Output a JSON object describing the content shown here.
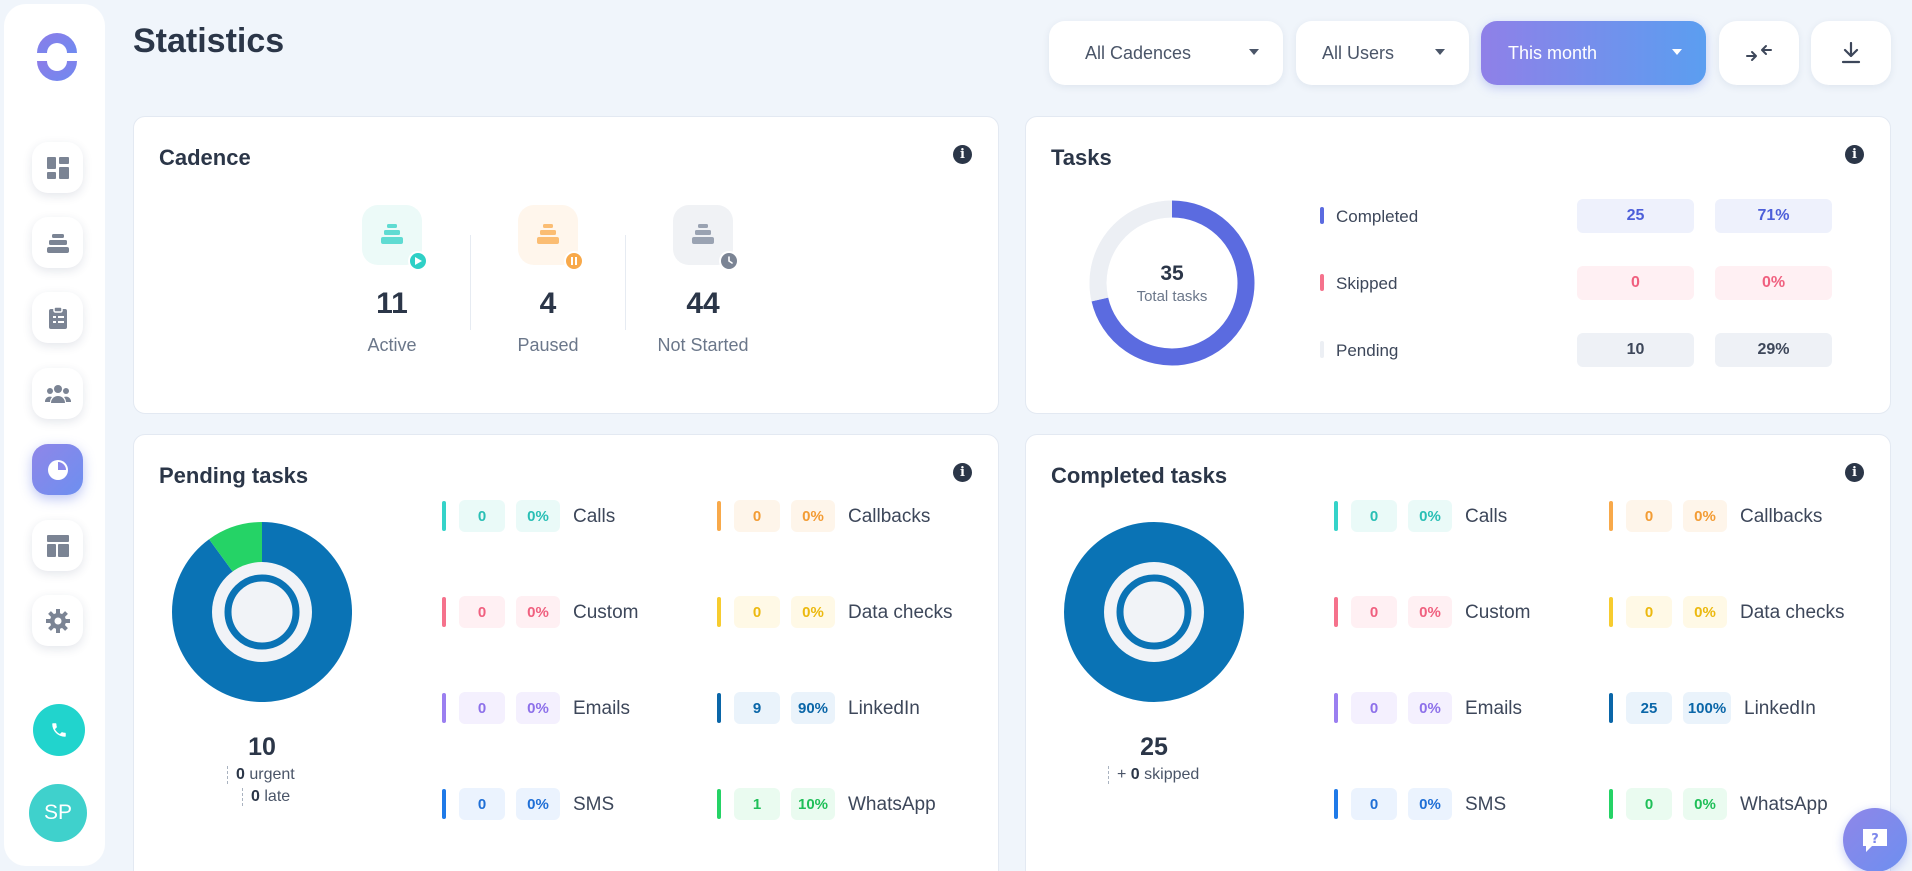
{
  "header": {
    "title": "Statistics",
    "filters": [
      "All Cadences",
      "All Users",
      "This month"
    ]
  },
  "user": {
    "initials": "SP"
  },
  "cadence": {
    "title": "Cadence",
    "items": [
      {
        "value": "11",
        "label": "Active",
        "color": "#2fd0c6"
      },
      {
        "value": "4",
        "label": "Paused",
        "color": "#f8a94a"
      },
      {
        "value": "44",
        "label": "Not Started",
        "color": "#8a94a6"
      }
    ]
  },
  "tasks": {
    "title": "Tasks",
    "total": "35",
    "total_label": "Total tasks",
    "rows": [
      {
        "label": "Completed",
        "count": "25",
        "percent": "71%",
        "color": "#5b6be0",
        "text": "#4d5fd9",
        "bg": "#eef1fc"
      },
      {
        "label": "Skipped",
        "count": "0",
        "percent": "0%",
        "color": "#f5728c",
        "text": "#f0607f",
        "bg": "#fff0f3"
      },
      {
        "label": "Pending",
        "count": "10",
        "percent": "29%",
        "color": "#eceff4",
        "text": "#3d475a",
        "bg": "#eef1f6"
      }
    ]
  },
  "chart_data": [
    {
      "type": "pie",
      "title": "",
      "categories": [
        "Completed",
        "Skipped",
        "Pending"
      ],
      "values": [
        25,
        0,
        10
      ]
    },
    {
      "type": "pie",
      "title": "",
      "categories": [
        "Calls",
        "Callbacks",
        "Custom",
        "Data checks",
        "Emails",
        "LinkedIn",
        "SMS",
        "WhatsApp"
      ],
      "values": [
        0,
        0,
        0,
        0,
        0,
        9,
        0,
        1
      ]
    },
    {
      "type": "pie",
      "title": "",
      "categories": [
        "Calls",
        "Callbacks",
        "Custom",
        "Data checks",
        "Emails",
        "LinkedIn",
        "SMS",
        "WhatsApp"
      ],
      "values": [
        0,
        0,
        0,
        0,
        0,
        25,
        0,
        0
      ]
    }
  ],
  "pending": {
    "title": "Pending tasks",
    "total": "10",
    "urgent_count": "0",
    "urgent_label": "urgent",
    "late_count": "0",
    "late_label": "late",
    "types": [
      {
        "label": "Calls",
        "count": "0",
        "percent": "0%",
        "color": "#35d3c9",
        "text": "#29bfb5",
        "bg": "#eafaf8"
      },
      {
        "label": "Callbacks",
        "count": "0",
        "percent": "0%",
        "color": "#f8a94a",
        "text": "#f39c34",
        "bg": "#fef5ea"
      },
      {
        "label": "Custom",
        "count": "0",
        "percent": "0%",
        "color": "#f5728c",
        "text": "#f0607f",
        "bg": "#fff0f3"
      },
      {
        "label": "Data checks",
        "count": "0",
        "percent": "0%",
        "color": "#f7cc2f",
        "text": "#ecb90f",
        "bg": "#fff9e6"
      },
      {
        "label": "Emails",
        "count": "0",
        "percent": "0%",
        "color": "#9b7ff0",
        "text": "#8d70ea",
        "bg": "#f4f0fe"
      },
      {
        "label": "LinkedIn",
        "count": "9",
        "percent": "90%",
        "color": "#0a66a8",
        "text": "#0a66a8",
        "bg": "#eaf3fb"
      },
      {
        "label": "SMS",
        "count": "0",
        "percent": "0%",
        "color": "#1f7ae8",
        "text": "#1f6fd6",
        "bg": "#ebf3fe"
      },
      {
        "label": "WhatsApp",
        "count": "1",
        "percent": "10%",
        "color": "#25d366",
        "text": "#1fbf58",
        "bg": "#eafbf0"
      }
    ]
  },
  "completed": {
    "title": "Completed tasks",
    "total": "25",
    "skipped_prefix": "+",
    "skipped_count": "0",
    "skipped_label": "skipped",
    "types": [
      {
        "label": "Calls",
        "count": "0",
        "percent": "0%",
        "color": "#35d3c9",
        "text": "#29bfb5",
        "bg": "#eafaf8"
      },
      {
        "label": "Callbacks",
        "count": "0",
        "percent": "0%",
        "color": "#f8a94a",
        "text": "#f39c34",
        "bg": "#fef5ea"
      },
      {
        "label": "Custom",
        "count": "0",
        "percent": "0%",
        "color": "#f5728c",
        "text": "#f0607f",
        "bg": "#fff0f3"
      },
      {
        "label": "Data checks",
        "count": "0",
        "percent": "0%",
        "color": "#f7cc2f",
        "text": "#ecb90f",
        "bg": "#fff9e6"
      },
      {
        "label": "Emails",
        "count": "0",
        "percent": "0%",
        "color": "#9b7ff0",
        "text": "#8d70ea",
        "bg": "#f4f0fe"
      },
      {
        "label": "LinkedIn",
        "count": "25",
        "percent": "100%",
        "color": "#0a66a8",
        "text": "#0a66a8",
        "bg": "#eaf3fb"
      },
      {
        "label": "SMS",
        "count": "0",
        "percent": "0%",
        "color": "#1f7ae8",
        "text": "#1f6fd6",
        "bg": "#ebf3fe"
      },
      {
        "label": "WhatsApp",
        "count": "0",
        "percent": "0%",
        "color": "#25d366",
        "text": "#1fbf58",
        "bg": "#eafbf0"
      }
    ]
  }
}
